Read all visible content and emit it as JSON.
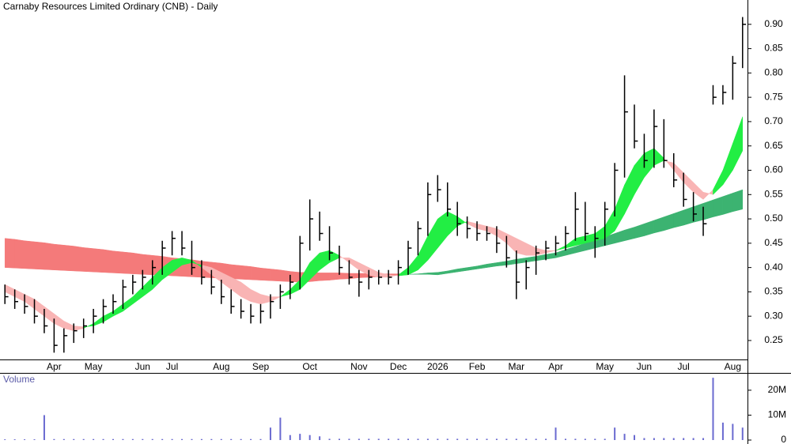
{
  "chart_data": {
    "type": "ohlc",
    "title": "Carnaby Resources Limited Ordinary (CNB) - Daily",
    "categories": [
      null,
      null,
      null,
      null,
      null,
      "Apr",
      null,
      null,
      null,
      "May",
      null,
      null,
      null,
      null,
      "Jun",
      null,
      null,
      "Jul",
      null,
      null,
      null,
      null,
      "Aug",
      null,
      null,
      null,
      "Sep",
      null,
      null,
      null,
      null,
      "Oct",
      null,
      null,
      null,
      null,
      "Nov",
      null,
      null,
      null,
      "Dec",
      null,
      null,
      null,
      "2026",
      null,
      null,
      null,
      "Feb",
      null,
      null,
      null,
      "Mar",
      null,
      null,
      null,
      "Apr",
      null,
      null,
      null,
      null,
      "May",
      null,
      null,
      null,
      "Jun",
      null,
      null,
      null,
      "Jul",
      null,
      null,
      null,
      null,
      "Aug",
      null
    ],
    "high": [
      0.365,
      0.355,
      0.345,
      0.335,
      0.315,
      0.295,
      0.275,
      0.285,
      0.295,
      0.315,
      0.335,
      0.345,
      0.375,
      0.385,
      0.395,
      0.415,
      0.455,
      0.475,
      0.475,
      0.455,
      0.415,
      0.395,
      0.375,
      0.355,
      0.335,
      0.325,
      0.325,
      0.345,
      0.365,
      0.385,
      0.465,
      0.54,
      0.515,
      0.485,
      0.445,
      0.415,
      0.395,
      0.395,
      0.395,
      0.395,
      0.415,
      0.455,
      0.495,
      0.575,
      0.59,
      0.575,
      0.535,
      0.505,
      0.495,
      0.485,
      0.485,
      0.465,
      0.435,
      0.415,
      0.445,
      0.455,
      0.465,
      0.485,
      0.555,
      0.535,
      0.485,
      0.535,
      0.615,
      0.795,
      0.735,
      0.675,
      0.725,
      0.705,
      0.635,
      0.595,
      0.555,
      0.525,
      0.775,
      0.775,
      0.835,
      0.915
    ],
    "low": [
      0.325,
      0.315,
      0.305,
      0.285,
      0.265,
      0.225,
      0.225,
      0.245,
      0.255,
      0.265,
      0.285,
      0.305,
      0.315,
      0.345,
      0.355,
      0.365,
      0.385,
      0.425,
      0.425,
      0.385,
      0.365,
      0.345,
      0.325,
      0.305,
      0.295,
      0.285,
      0.285,
      0.295,
      0.315,
      0.335,
      0.355,
      0.435,
      0.455,
      0.415,
      0.385,
      0.365,
      0.34,
      0.355,
      0.365,
      0.365,
      0.365,
      0.385,
      0.425,
      0.465,
      0.535,
      0.505,
      0.465,
      0.46,
      0.455,
      0.455,
      0.43,
      0.4,
      0.335,
      0.355,
      0.385,
      0.415,
      0.425,
      0.435,
      0.455,
      0.455,
      0.42,
      0.445,
      0.505,
      0.585,
      0.645,
      0.605,
      0.605,
      0.605,
      0.565,
      0.525,
      0.495,
      0.465,
      0.735,
      0.735,
      0.745,
      0.81
    ],
    "close": [
      0.34,
      0.33,
      0.32,
      0.3,
      0.28,
      0.24,
      0.26,
      0.27,
      0.28,
      0.3,
      0.32,
      0.33,
      0.36,
      0.37,
      0.38,
      0.4,
      0.44,
      0.46,
      0.44,
      0.4,
      0.38,
      0.36,
      0.34,
      0.32,
      0.31,
      0.3,
      0.31,
      0.33,
      0.35,
      0.37,
      0.45,
      0.5,
      0.47,
      0.43,
      0.4,
      0.38,
      0.37,
      0.38,
      0.38,
      0.38,
      0.4,
      0.44,
      0.48,
      0.55,
      0.56,
      0.52,
      0.49,
      0.48,
      0.47,
      0.47,
      0.45,
      0.42,
      0.37,
      0.4,
      0.43,
      0.44,
      0.45,
      0.47,
      0.52,
      0.47,
      0.46,
      0.52,
      0.6,
      0.72,
      0.66,
      0.62,
      0.69,
      0.62,
      0.58,
      0.54,
      0.51,
      0.49,
      0.75,
      0.76,
      0.82,
      0.9
    ],
    "bar_color": "#000000",
    "ribbons": [
      {
        "fast": [
          0.4,
          0.399,
          0.398,
          0.397,
          0.396,
          0.395,
          0.394,
          0.393,
          0.392,
          0.391,
          0.39,
          0.389,
          0.388,
          0.387,
          0.386,
          0.385,
          0.384,
          0.383,
          0.382,
          0.381,
          0.38,
          0.379,
          0.378,
          0.377,
          0.376,
          0.375,
          0.374,
          0.373,
          0.372,
          0.371,
          0.37,
          0.371,
          0.373,
          0.374,
          0.376,
          0.377,
          0.379,
          0.38,
          0.381,
          0.383,
          0.384,
          0.386,
          0.387,
          0.389,
          0.39,
          0.393,
          0.397,
          0.4,
          0.403,
          0.407,
          0.41,
          0.413,
          0.417,
          0.42,
          0.423,
          0.427,
          0.43,
          0.437,
          0.443,
          0.45,
          0.457,
          0.463,
          0.47,
          0.477,
          0.483,
          0.49,
          0.497,
          0.504,
          0.511,
          0.518,
          0.525,
          0.532,
          0.539,
          0.546,
          0.553,
          0.56
        ],
        "slow": [
          0.46,
          0.458,
          0.455,
          0.453,
          0.451,
          0.448,
          0.446,
          0.444,
          0.441,
          0.439,
          0.437,
          0.434,
          0.432,
          0.43,
          0.427,
          0.425,
          0.423,
          0.42,
          0.418,
          0.416,
          0.413,
          0.411,
          0.409,
          0.406,
          0.404,
          0.402,
          0.399,
          0.397,
          0.395,
          0.392,
          0.39,
          0.39,
          0.389,
          0.389,
          0.389,
          0.388,
          0.388,
          0.388,
          0.387,
          0.387,
          0.387,
          0.386,
          0.386,
          0.386,
          0.385,
          0.388,
          0.391,
          0.394,
          0.397,
          0.4,
          0.403,
          0.405,
          0.408,
          0.411,
          0.414,
          0.417,
          0.42,
          0.425,
          0.43,
          0.435,
          0.44,
          0.445,
          0.45,
          0.455,
          0.46,
          0.465,
          0.471,
          0.476,
          0.482,
          0.487,
          0.493,
          0.498,
          0.504,
          0.509,
          0.515,
          0.52
        ],
        "rise_color": "#3cb371",
        "fall_color": "#f47a7a"
      },
      {
        "fast": [
          0.35,
          0.34,
          0.33,
          0.315,
          0.3,
          0.285,
          0.275,
          0.27,
          0.275,
          0.285,
          0.3,
          0.31,
          0.325,
          0.34,
          0.36,
          0.38,
          0.4,
          0.415,
          0.42,
          0.415,
          0.4,
          0.385,
          0.37,
          0.355,
          0.34,
          0.33,
          0.325,
          0.33,
          0.34,
          0.355,
          0.375,
          0.41,
          0.43,
          0.435,
          0.425,
          0.41,
          0.395,
          0.385,
          0.38,
          0.38,
          0.385,
          0.4,
          0.425,
          0.465,
          0.5,
          0.515,
          0.505,
          0.49,
          0.48,
          0.475,
          0.465,
          0.45,
          0.43,
          0.425,
          0.425,
          0.43,
          0.435,
          0.445,
          0.46,
          0.465,
          0.47,
          0.485,
          0.52,
          0.57,
          0.61,
          0.635,
          0.645,
          0.625,
          0.6,
          0.575,
          0.555,
          0.54,
          0.56,
          0.6,
          0.655,
          0.71
        ],
        "slow": [
          0.365,
          0.355,
          0.345,
          0.335,
          0.32,
          0.305,
          0.29,
          0.28,
          0.278,
          0.28,
          0.288,
          0.3,
          0.31,
          0.325,
          0.34,
          0.355,
          0.375,
          0.39,
          0.405,
          0.41,
          0.405,
          0.4,
          0.39,
          0.38,
          0.37,
          0.355,
          0.345,
          0.34,
          0.34,
          0.345,
          0.355,
          0.375,
          0.395,
          0.41,
          0.42,
          0.42,
          0.41,
          0.4,
          0.39,
          0.385,
          0.383,
          0.385,
          0.395,
          0.415,
          0.44,
          0.465,
          0.485,
          0.495,
          0.49,
          0.485,
          0.48,
          0.47,
          0.46,
          0.45,
          0.44,
          0.435,
          0.435,
          0.44,
          0.445,
          0.45,
          0.455,
          0.46,
          0.475,
          0.51,
          0.55,
          0.585,
          0.61,
          0.62,
          0.615,
          0.595,
          0.575,
          0.555,
          0.55,
          0.57,
          0.6,
          0.64
        ],
        "rise_color": "#22ee44",
        "fall_color": "#f9b4b4"
      }
    ],
    "ylim": [
      0.211,
      0.95
    ],
    "yticks": [
      0.25,
      {
        "value": 0.3,
        "label": "0.30"
      },
      0.35,
      {
        "value": 0.4,
        "label": "0.40"
      },
      0.45,
      {
        "value": 0.5,
        "label": "0.50"
      },
      0.55,
      {
        "value": 0.6,
        "label": "0.60"
      },
      0.65,
      {
        "value": 0.7,
        "label": "0.70"
      },
      0.75,
      {
        "value": 0.8,
        "label": "0.80"
      },
      0.85,
      {
        "value": 0.9,
        "label": "0.90"
      }
    ],
    "volume": {
      "label": "Volume",
      "color": "#6a6ad0",
      "values": [
        300000,
        300000,
        300000,
        300000,
        10000000,
        400000,
        400000,
        400000,
        400000,
        400000,
        400000,
        400000,
        400000,
        400000,
        400000,
        400000,
        400000,
        400000,
        400000,
        400000,
        400000,
        400000,
        400000,
        400000,
        400000,
        400000,
        400000,
        5000000,
        9000000,
        2000000,
        2500000,
        2000000,
        1500000,
        500000,
        500000,
        500000,
        500000,
        500000,
        500000,
        500000,
        500000,
        500000,
        500000,
        500000,
        500000,
        500000,
        500000,
        500000,
        500000,
        500000,
        500000,
        500000,
        500000,
        500000,
        500000,
        500000,
        5000000,
        500000,
        500000,
        500000,
        500000,
        500000,
        5000000,
        2500000,
        2000000,
        800000,
        800000,
        800000,
        800000,
        800000,
        800000,
        800000,
        25000000,
        7000000,
        6500000,
        5000000
      ],
      "ylim": [
        0,
        26000000
      ],
      "yticks": [
        0,
        {
          "value": 10000000,
          "label": "10M"
        },
        {
          "value": 20000000,
          "label": "20M"
        }
      ]
    }
  }
}
